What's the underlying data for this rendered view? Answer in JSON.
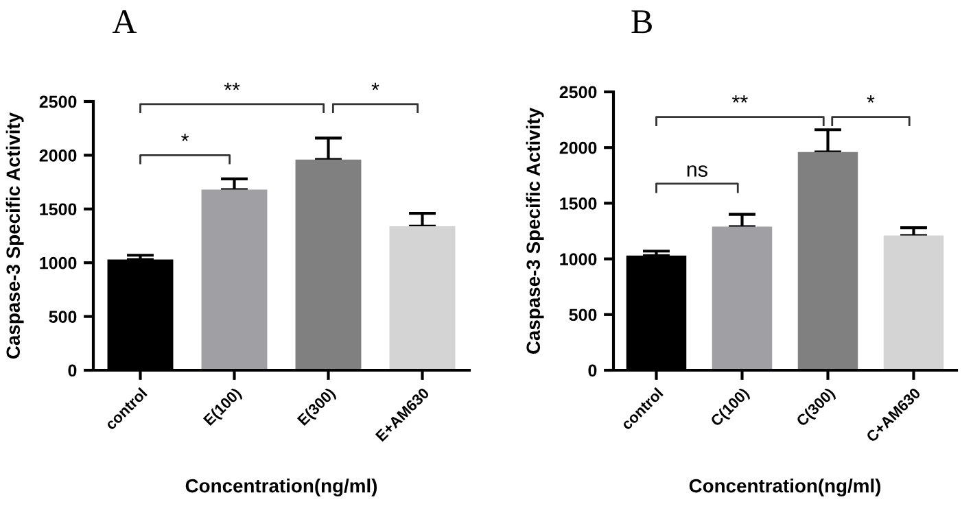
{
  "chart_data": [
    {
      "type": "bar",
      "title": "A",
      "xlabel": "Concentration(ng/ml)",
      "ylabel": "Caspase-3 Specific Activity",
      "categories": [
        "control",
        "E(100)",
        "E(300)",
        "E+AM630"
      ],
      "values": [
        1030,
        1680,
        1960,
        1340
      ],
      "colors": [
        "#000000",
        "#a0a0a4",
        "#808080",
        "#d4d4d4"
      ],
      "errors": [
        [
          1030,
          1070
        ],
        [
          1680,
          1780
        ],
        [
          1960,
          2160
        ],
        [
          1340,
          1460
        ]
      ],
      "ylim": [
        0,
        2500
      ],
      "yticks": [
        0,
        500,
        1000,
        1500,
        2000,
        2500
      ],
      "grid": false,
      "annotations": [
        "*",
        "**",
        "*"
      ]
    },
    {
      "type": "bar",
      "title": "B",
      "xlabel": "Concentration(ng/ml)",
      "ylabel": "Caspase-3 Specific Activity",
      "categories": [
        "control",
        "C(100)",
        "C(300)",
        "C+AM630"
      ],
      "values": [
        1030,
        1290,
        1960,
        1210
      ],
      "colors": [
        "#000000",
        "#a0a0a4",
        "#808080",
        "#d4d4d4"
      ],
      "errors": [
        [
          1030,
          1070
        ],
        [
          1290,
          1400
        ],
        [
          1960,
          2160
        ],
        [
          1210,
          1280
        ]
      ],
      "ylim": [
        0,
        2500
      ],
      "yticks": [
        0,
        500,
        1000,
        1500,
        2000,
        2500
      ],
      "grid": false,
      "annotations": [
        "ns",
        "**",
        "*"
      ]
    }
  ]
}
